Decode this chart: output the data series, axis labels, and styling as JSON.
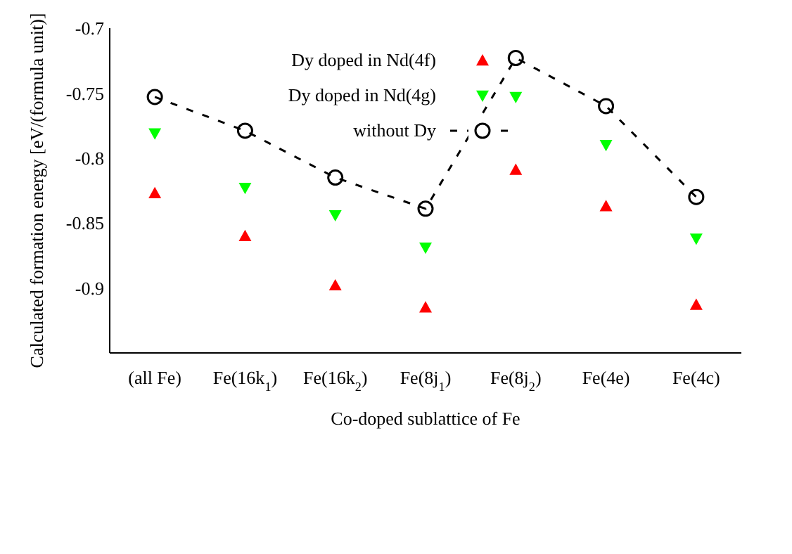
{
  "chart_data": {
    "type": "scatter",
    "xlabel": "Co-doped sublattice of Fe",
    "ylabel": "Calculated formation energy [eV/(formula unit)]",
    "categories": [
      "(all Fe)",
      "Fe(16k$_{1}$)",
      "Fe(16k$_{2}$)",
      "Fe(8j$_{1}$)",
      "Fe(8j$_{2}$)",
      "Fe(4e)",
      "Fe(4c)"
    ],
    "series": [
      {
        "name": "Dy doped in Nd(4f)",
        "marker": "triangle",
        "color": "#ff0000",
        "values": [
          -0.827,
          -0.86,
          -0.898,
          -0.915,
          -0.809,
          -0.837,
          -0.913
        ]
      },
      {
        "name": "Dy doped in Nd(4g)",
        "marker": "triangle-down",
        "color": "#00ff00",
        "values": [
          -0.781,
          -0.823,
          -0.844,
          -0.869,
          -0.753,
          -0.79,
          -0.862
        ]
      },
      {
        "name": "without Dy",
        "type": "line",
        "marker": "circle",
        "line_style": "dashed",
        "color": "#000000",
        "values": [
          -0.753,
          -0.779,
          -0.815,
          -0.839,
          -0.723,
          -0.76,
          -0.83
        ]
      }
    ],
    "ylim": [
      -0.95,
      -0.7
    ],
    "yticks": [
      -0.9,
      -0.85,
      -0.8,
      -0.75,
      -0.7
    ],
    "legend": "top"
  }
}
